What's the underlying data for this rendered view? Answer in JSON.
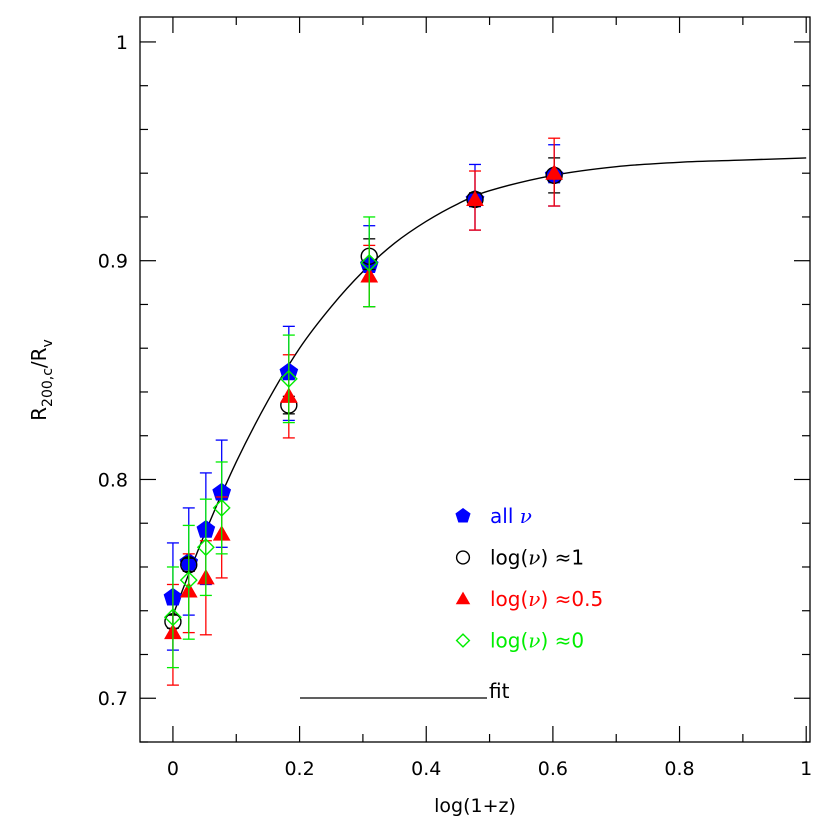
{
  "chart_data": {
    "type": "scatter",
    "xlabel": "log(1+z)",
    "ylabel_main": "R",
    "ylabel_sub1": "200,c",
    "ylabel_slash": "/R",
    "ylabel_sub2": "v",
    "xlim": [
      -0.052,
      1.006
    ],
    "ylim": [
      0.68,
      1.0114
    ],
    "x_ticks": [
      0,
      0.2,
      0.4,
      0.6,
      0.8,
      1
    ],
    "x_tick_labels": [
      "0",
      "0.2",
      "0.4",
      "0.6",
      "0.8",
      "1"
    ],
    "y_ticks": [
      0.7,
      0.8,
      0.9,
      1
    ],
    "y_tick_labels": [
      "0.7",
      "0.8",
      "0.9",
      "1"
    ],
    "x_minor_step": 0.1,
    "y_minor_step": 0.02,
    "grid": false,
    "legend_placement": "bottom-center",
    "series": [
      {
        "name": "all ν",
        "legend_text": "all",
        "legend_nu": "ν",
        "marker": "pentagon",
        "filled": true,
        "color": "#0000ff",
        "x": [
          0,
          0.025,
          0.052,
          0.077,
          0.183,
          0.31,
          0.477,
          0.602
        ],
        "y": [
          0.746,
          0.762,
          0.777,
          0.794,
          0.849,
          0.898,
          0.928,
          0.939
        ],
        "err_hi": [
          0.771,
          0.787,
          0.803,
          0.818,
          0.87,
          0.916,
          0.944,
          0.953
        ],
        "err_lo": [
          0.722,
          0.738,
          0.752,
          0.769,
          0.827,
          0.879,
          0.914,
          0.925
        ]
      },
      {
        "name": "log(ν) ≈1",
        "legend_text": "log(",
        "legend_nu": "ν",
        "legend_tail": ")  ≈1",
        "marker": "circle",
        "filled": false,
        "color": "#000000",
        "x": [
          0,
          0.025,
          0.183,
          0.31,
          0.477,
          0.602
        ],
        "y": [
          0.735,
          0.761,
          0.834,
          0.902,
          0.928,
          0.939
        ],
        "err_hi": [
          0.738,
          0.764,
          0.838,
          0.91,
          0.931,
          0.947
        ],
        "err_lo": [
          0.732,
          0.758,
          0.83,
          0.896,
          0.925,
          0.931
        ]
      },
      {
        "name": "log(ν) ≈0.5",
        "legend_text": "log(",
        "legend_nu": "ν",
        "legend_tail": ")  ≈0.5",
        "marker": "triangle",
        "filled": true,
        "color": "#ff0000",
        "x": [
          0,
          0.025,
          0.052,
          0.077,
          0.183,
          0.31,
          0.477,
          0.602
        ],
        "y": [
          0.73,
          0.749,
          0.755,
          0.775,
          0.838,
          0.893,
          0.928,
          0.94
        ],
        "err_hi": [
          0.752,
          0.766,
          0.772,
          0.792,
          0.857,
          0.907,
          0.941,
          0.956
        ],
        "err_lo": [
          0.706,
          0.73,
          0.729,
          0.755,
          0.819,
          0.879,
          0.914,
          0.925
        ]
      },
      {
        "name": "log(ν) ≈0",
        "legend_text": "log(",
        "legend_nu": "ν",
        "legend_tail": ")  ≈0",
        "marker": "diamond",
        "filled": false,
        "color": "#00ee00",
        "x": [
          0,
          0.025,
          0.052,
          0.077,
          0.183,
          0.31
        ],
        "y": [
          0.737,
          0.754,
          0.769,
          0.787,
          0.846,
          0.899
        ],
        "err_hi": [
          0.76,
          0.779,
          0.791,
          0.808,
          0.866,
          0.92
        ],
        "err_lo": [
          0.714,
          0.727,
          0.747,
          0.766,
          0.826,
          0.879
        ]
      }
    ],
    "fit": {
      "name": "fit",
      "color": "#000000",
      "x": [
        0,
        0.05,
        0.1,
        0.15,
        0.2,
        0.25,
        0.3,
        0.35,
        0.4,
        0.45,
        0.5,
        0.6,
        0.7,
        0.8,
        0.9,
        1.0
      ],
      "y": [
        0.738,
        0.775,
        0.808,
        0.836,
        0.86,
        0.879,
        0.895,
        0.908,
        0.918,
        0.926,
        0.932,
        0.939,
        0.943,
        0.945,
        0.946,
        0.947
      ]
    }
  }
}
